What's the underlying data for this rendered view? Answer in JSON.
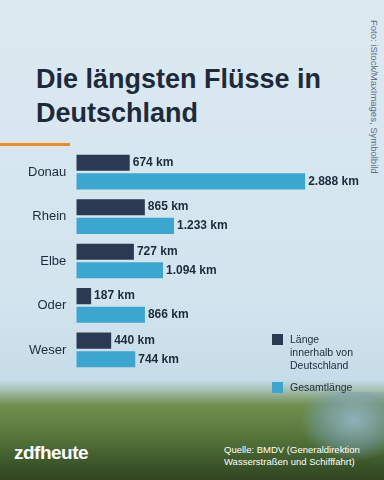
{
  "chart_data": {
    "type": "bar",
    "orientation": "horizontal",
    "title": "Die längsten Flüsse in Deutschland",
    "categories": [
      "Donau",
      "Rhein",
      "Elbe",
      "Oder",
      "Weser"
    ],
    "series": [
      {
        "name": "Länge innerhalb von Deutschland",
        "color": "#2b3a52",
        "values": [
          674,
          865,
          727,
          187,
          440
        ],
        "value_labels": [
          "674 km",
          "865 km",
          "727 km",
          "187 km",
          "440 km"
        ]
      },
      {
        "name": "Gesamtlänge",
        "color": "#3ba6cf",
        "values": [
          2888,
          1233,
          1094,
          866,
          744
        ],
        "value_labels": [
          "2.888 km",
          "1.233 km",
          "1.094 km",
          "866 km",
          "744 km"
        ]
      }
    ],
    "data_labels": true,
    "grid": false,
    "tick_labels": "y",
    "legend": "lower right",
    "source": "Quelle: BMDV (Generaldirektion Wasserstraßen und Schifffahrt)",
    "photo_credit": "Foto: iStock/MaxImages, Symbolbild",
    "brand": "zdfheute"
  }
}
